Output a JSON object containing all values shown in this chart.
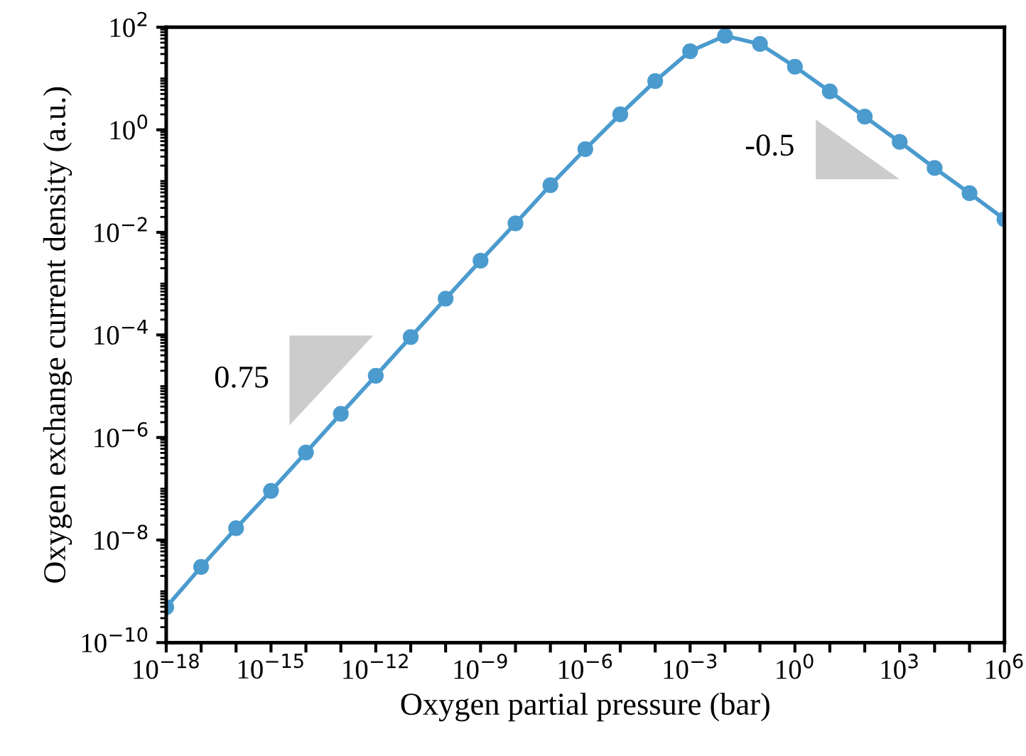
{
  "chart_data": {
    "type": "line",
    "xlabel": "Oxygen partial pressure (bar)",
    "ylabel": "Oxygen exchange current density (a.u.)",
    "x": [
      1e-18,
      1e-17,
      1e-16,
      1e-15,
      1e-14,
      1e-13,
      1e-12,
      1e-11,
      1e-10,
      1e-09,
      1e-08,
      1e-07,
      1e-06,
      1e-05,
      0.0001,
      0.001,
      0.01,
      0.1,
      1,
      10,
      100,
      1000,
      10000.0,
      100000.0,
      1000000.0
    ],
    "series": [
      {
        "color": "#4b9bce",
        "values": [
          4.9e-10,
          3e-09,
          1.7e-08,
          9.1e-08,
          5.1e-07,
          2.9e-06,
          1.6e-05,
          9.1e-05,
          0.00051,
          0.0028,
          0.015,
          0.083,
          0.42,
          2.0,
          8.9,
          34,
          68,
          47,
          17,
          5.6,
          1.8,
          0.58,
          0.18,
          0.058,
          0.018
        ]
      }
    ],
    "log": "xy",
    "marker": "circle",
    "line_style": "solid",
    "grid": false,
    "xlim": [
      1e-18,
      1000000.0
    ],
    "ylim": [
      1e-10,
      100
    ],
    "xticks": [
      {
        "value": 1e-18,
        "label": "10$^{−18}$"
      },
      {
        "value": 1e-17,
        "label": null
      },
      {
        "value": 1e-16,
        "label": null
      },
      {
        "value": 1e-15,
        "label": "10$^{−15}$"
      },
      {
        "value": 1e-14,
        "label": null
      },
      {
        "value": 1e-13,
        "label": null
      },
      {
        "value": 1e-12,
        "label": "10$^{−12}$"
      },
      {
        "value": 1e-11,
        "label": null
      },
      {
        "value": 1e-10,
        "label": null
      },
      {
        "value": 1e-09,
        "label": "10$^{−9}$"
      },
      {
        "value": 1e-08,
        "label": null
      },
      {
        "value": 1e-07,
        "label": null
      },
      {
        "value": 1e-06,
        "label": "10$^{−6}$"
      },
      {
        "value": 1e-05,
        "label": null
      },
      {
        "value": 0.0001,
        "label": null
      },
      {
        "value": 0.001,
        "label": "10$^{−3}$"
      },
      {
        "value": 0.01,
        "label": null
      },
      {
        "value": 0.1,
        "label": null
      },
      {
        "value": 1,
        "label": "10$^{0}$"
      },
      {
        "value": 10,
        "label": null
      },
      {
        "value": 100,
        "label": null
      },
      {
        "value": 1000,
        "label": "10$^{3}$"
      },
      {
        "value": 10000.0,
        "label": null
      },
      {
        "value": 100000.0,
        "label": null
      },
      {
        "value": 1000000.0,
        "label": "10$^{6}$"
      }
    ],
    "yticks": [
      {
        "value": 1e-10,
        "label": "10$^{−10}$"
      },
      {
        "value": 1e-08,
        "label": "10$^{−8}$"
      },
      {
        "value": 1e-06,
        "label": "10$^{−6}$"
      },
      {
        "value": 0.0001,
        "label": "10$^{−4}$"
      },
      {
        "value": 0.01,
        "label": "10$^{−2}$"
      },
      {
        "value": 1,
        "label": "10$^{0}$"
      },
      {
        "value": 100,
        "label": "10$^{2}$"
      }
    ],
    "annotations": [
      "0.75",
      "-0.5"
    ]
  }
}
